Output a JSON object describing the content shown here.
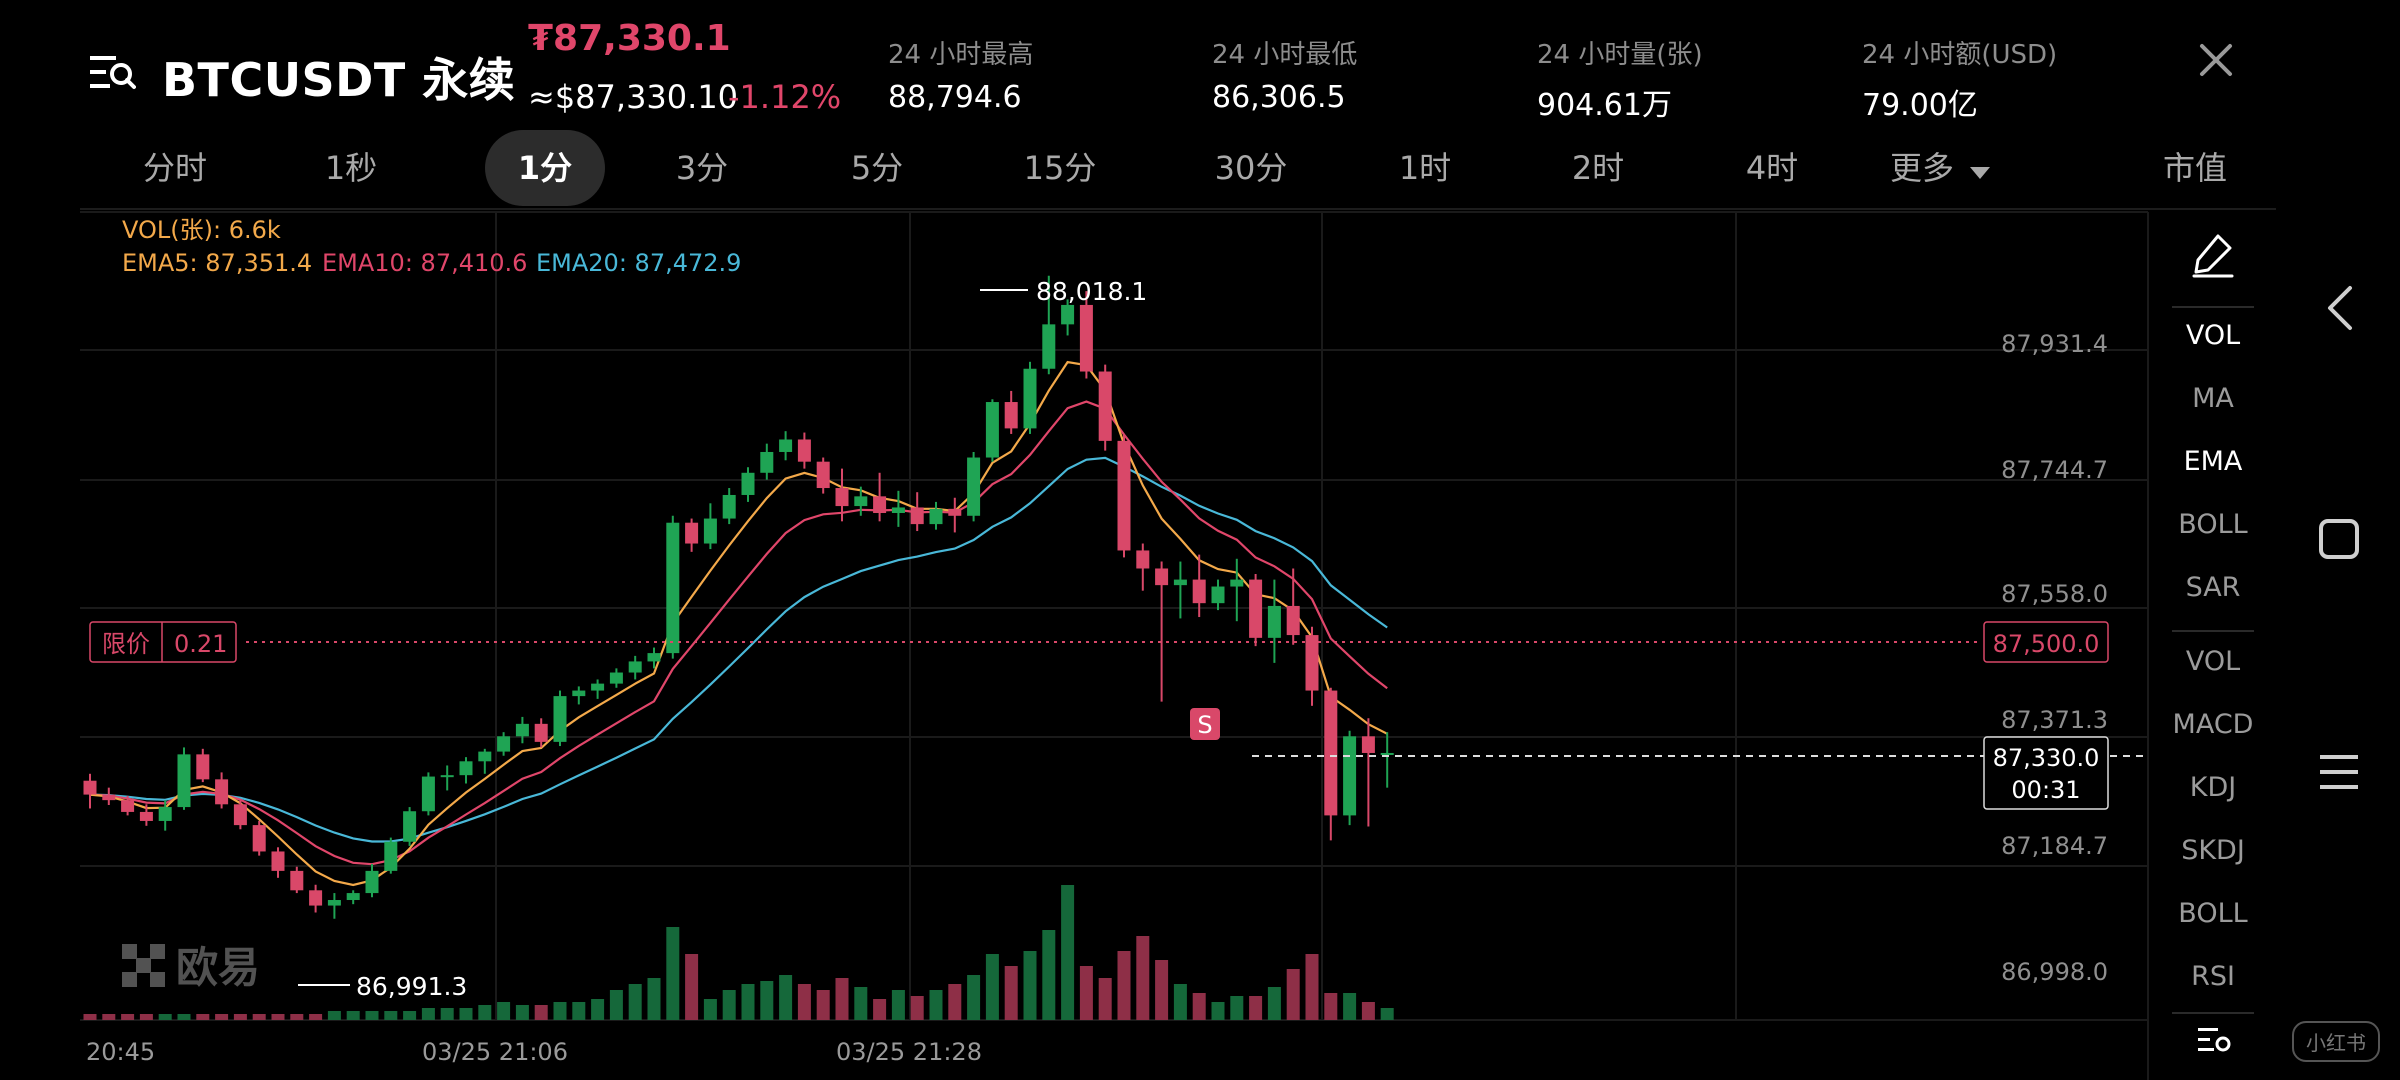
{
  "header": {
    "title": "BTCUSDT 永续",
    "last_price": "₮87,330.1",
    "usd_price": "≈$87,330.10",
    "change_pct": "-1.12%",
    "stats": [
      {
        "label": "24 小时最高",
        "value": "88,794.6"
      },
      {
        "label": "24 小时最低",
        "value": "86,306.5"
      },
      {
        "label": "24 小时量(张)",
        "value": "904.61万"
      },
      {
        "label": "24 小时额(USD)",
        "value": "79.00亿"
      }
    ]
  },
  "tabs": [
    {
      "label": "分时"
    },
    {
      "label": "1秒"
    },
    {
      "label": "1分",
      "active": true
    },
    {
      "label": "3分"
    },
    {
      "label": "5分"
    },
    {
      "label": "15分"
    },
    {
      "label": "30分"
    },
    {
      "label": "1时"
    },
    {
      "label": "2时"
    },
    {
      "label": "4时"
    },
    {
      "label": "更多"
    },
    {
      "label": "市值"
    }
  ],
  "indicators": {
    "vol": "VOL(张): 6.6k",
    "ema5": "EMA5: 87,351.4",
    "ema10": "EMA10: 87,410.6",
    "ema20": "EMA20: 87,472.9"
  },
  "limit_order": {
    "label": "限价",
    "qty": "0.21",
    "price": "87,500.0"
  },
  "current": {
    "price": "87,330.0",
    "countdown": "00:31"
  },
  "y_ticks": [
    "87,931.4",
    "87,744.7",
    "87,558.0",
    "87,371.3",
    "87,184.7",
    "86,998.0"
  ],
  "x_ticks": [
    "20:45",
    "03/25 21:06",
    "03/25 21:28"
  ],
  "high_marker": "88,018.1",
  "low_marker": "86,991.3",
  "signal": "S",
  "brand_watermark": "欧易",
  "side_panel": {
    "main_indicators": [
      "VOL",
      "MA",
      "EMA",
      "BOLL",
      "SAR"
    ],
    "sub_indicators": [
      "VOL",
      "MACD",
      "KDJ",
      "SKDJ",
      "BOLL",
      "RSI"
    ],
    "active": [
      "VOL",
      "EMA"
    ]
  },
  "colors": {
    "up": "#1fa454",
    "down": "#d94869",
    "ema5": "#f3a94a",
    "ema10": "#e0466a",
    "ema20": "#49b8d8",
    "background": "#000000"
  },
  "corner_badge": "小红书",
  "chart_data": {
    "type": "candlestick",
    "timeframe": "1分",
    "x_ticks": [
      "20:45",
      "03/25 21:06",
      "03/25 21:28"
    ],
    "y_ticks": [
      87931.4,
      87744.7,
      87558.0,
      87371.3,
      87184.7,
      86998.0
    ],
    "ylim": [
      86945,
      88110
    ],
    "candles": [
      [
        87290,
        87300,
        87250,
        87270
      ],
      [
        87270,
        87280,
        87255,
        87262
      ],
      [
        87262,
        87268,
        87240,
        87245
      ],
      [
        87245,
        87256,
        87225,
        87232
      ],
      [
        87232,
        87262,
        87218,
        87252
      ],
      [
        87252,
        87338,
        87248,
        87328
      ],
      [
        87328,
        87336,
        87288,
        87292
      ],
      [
        87292,
        87302,
        87250,
        87256
      ],
      [
        87256,
        87262,
        87220,
        87226
      ],
      [
        87226,
        87232,
        87182,
        87188
      ],
      [
        87188,
        87194,
        87150,
        87160
      ],
      [
        87160,
        87166,
        87128,
        87132
      ],
      [
        87132,
        87140,
        87100,
        87110
      ],
      [
        87110,
        87128,
        87091,
        87118
      ],
      [
        87118,
        87132,
        87112,
        87128
      ],
      [
        87128,
        87170,
        87122,
        87160
      ],
      [
        87160,
        87208,
        87156,
        87202
      ],
      [
        87202,
        87252,
        87196,
        87246
      ],
      [
        87246,
        87302,
        87240,
        87296
      ],
      [
        87296,
        87312,
        87276,
        87298
      ],
      [
        87298,
        87324,
        87286,
        87318
      ],
      [
        87318,
        87336,
        87300,
        87332
      ],
      [
        87332,
        87360,
        87326,
        87354
      ],
      [
        87354,
        87382,
        87344,
        87372
      ],
      [
        87372,
        87380,
        87338,
        87346
      ],
      [
        87346,
        87420,
        87340,
        87412
      ],
      [
        87412,
        87426,
        87400,
        87420
      ],
      [
        87420,
        87436,
        87408,
        87430
      ],
      [
        87430,
        87452,
        87424,
        87446
      ],
      [
        87446,
        87470,
        87436,
        87462
      ],
      [
        87462,
        87482,
        87452,
        87474
      ],
      [
        87474,
        87672,
        87466,
        87662
      ],
      [
        87662,
        87668,
        87620,
        87632
      ],
      [
        87632,
        87690,
        87624,
        87668
      ],
      [
        87668,
        87712,
        87660,
        87702
      ],
      [
        87702,
        87742,
        87692,
        87734
      ],
      [
        87734,
        87776,
        87724,
        87764
      ],
      [
        87764,
        87794,
        87752,
        87782
      ],
      [
        87782,
        87792,
        87740,
        87750
      ],
      [
        87750,
        87756,
        87704,
        87712
      ],
      [
        87712,
        87740,
        87664,
        87686
      ],
      [
        87686,
        87714,
        87672,
        87700
      ],
      [
        87700,
        87734,
        87664,
        87676
      ],
      [
        87676,
        87708,
        87656,
        87684
      ],
      [
        87684,
        87706,
        87650,
        87660
      ],
      [
        87660,
        87692,
        87652,
        87682
      ],
      [
        87682,
        87698,
        87648,
        87672
      ],
      [
        87672,
        87764,
        87664,
        87756
      ],
      [
        87756,
        87840,
        87750,
        87836
      ],
      [
        87836,
        87852,
        87790,
        87798
      ],
      [
        87798,
        87894,
        87790,
        87884
      ],
      [
        87884,
        88018,
        87876,
        87948
      ],
      [
        87948,
        87984,
        87932,
        87976
      ],
      [
        87976,
        87996,
        87870,
        87880
      ],
      [
        87880,
        87890,
        87766,
        87780
      ],
      [
        87780,
        87790,
        87612,
        87622
      ],
      [
        87622,
        87632,
        87564,
        87596
      ],
      [
        87596,
        87606,
        87404,
        87572
      ],
      [
        87572,
        87606,
        87524,
        87580
      ],
      [
        87580,
        87616,
        87526,
        87546
      ],
      [
        87546,
        87580,
        87536,
        87570
      ],
      [
        87570,
        87610,
        87520,
        87580
      ],
      [
        87580,
        87588,
        87484,
        87496
      ],
      [
        87496,
        87580,
        87460,
        87542
      ],
      [
        87542,
        87596,
        87486,
        87500
      ],
      [
        87500,
        87512,
        87398,
        87420
      ],
      [
        87420,
        87424,
        87204,
        87240
      ],
      [
        87240,
        87362,
        87226,
        87354
      ],
      [
        87354,
        87380,
        87224,
        87330
      ],
      [
        87330,
        87360,
        87280,
        87330
      ]
    ],
    "volume_relative": [
      2,
      2,
      2,
      2,
      2,
      2,
      2,
      2,
      2,
      2,
      2,
      2,
      2,
      3,
      3,
      3,
      3,
      3,
      4,
      4,
      4,
      5,
      6,
      5,
      5,
      6,
      6,
      7,
      10,
      12,
      14,
      31,
      22,
      7,
      10,
      12,
      13,
      15,
      12,
      10,
      14,
      11,
      7,
      10,
      8,
      10,
      12,
      15,
      22,
      18,
      23,
      30,
      45,
      18,
      14,
      23,
      28,
      20,
      12,
      9,
      6,
      8,
      8,
      11,
      17,
      22,
      9,
      9,
      6,
      4
    ],
    "ema_series": [
      {
        "name": "EMA5",
        "last": 87351.4
      },
      {
        "name": "EMA10",
        "last": 87410.6
      },
      {
        "name": "EMA20",
        "last": 87472.9
      }
    ]
  }
}
